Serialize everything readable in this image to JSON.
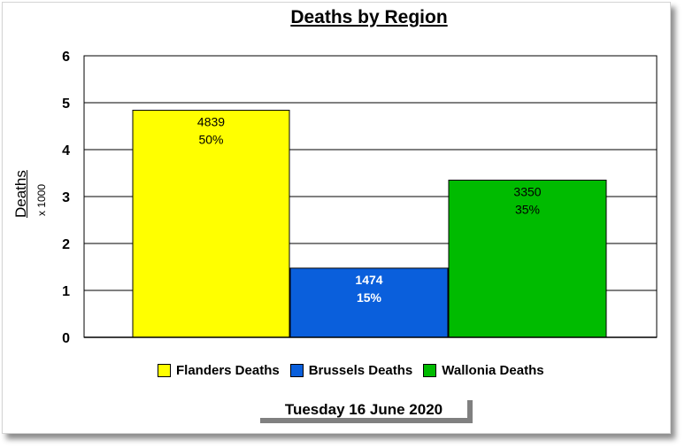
{
  "chart_data": {
    "type": "bar",
    "title": "Deaths by Region",
    "ylabel": "Deaths",
    "ylabel_unit": "x 1000",
    "ylim": [
      0,
      6
    ],
    "yticks": [
      "0",
      "1",
      "2",
      "3",
      "4",
      "5",
      "6"
    ],
    "grid": true,
    "legend_position": "bottom",
    "categories": [
      "Flanders Deaths",
      "Brussels Deaths",
      "Wallonia Deaths"
    ],
    "values": [
      4839,
      1474,
      3350
    ],
    "percent_labels": [
      "50%",
      "15%",
      "35%"
    ],
    "value_labels": [
      "4839",
      "1474",
      "3350"
    ],
    "colors": [
      "#ffff00",
      "#0a5fdc",
      "#00bb00"
    ],
    "label_colors": [
      "#000000",
      "#ffffff",
      "#000000"
    ]
  },
  "footer": {
    "date": "Tuesday 16 June 2020"
  }
}
